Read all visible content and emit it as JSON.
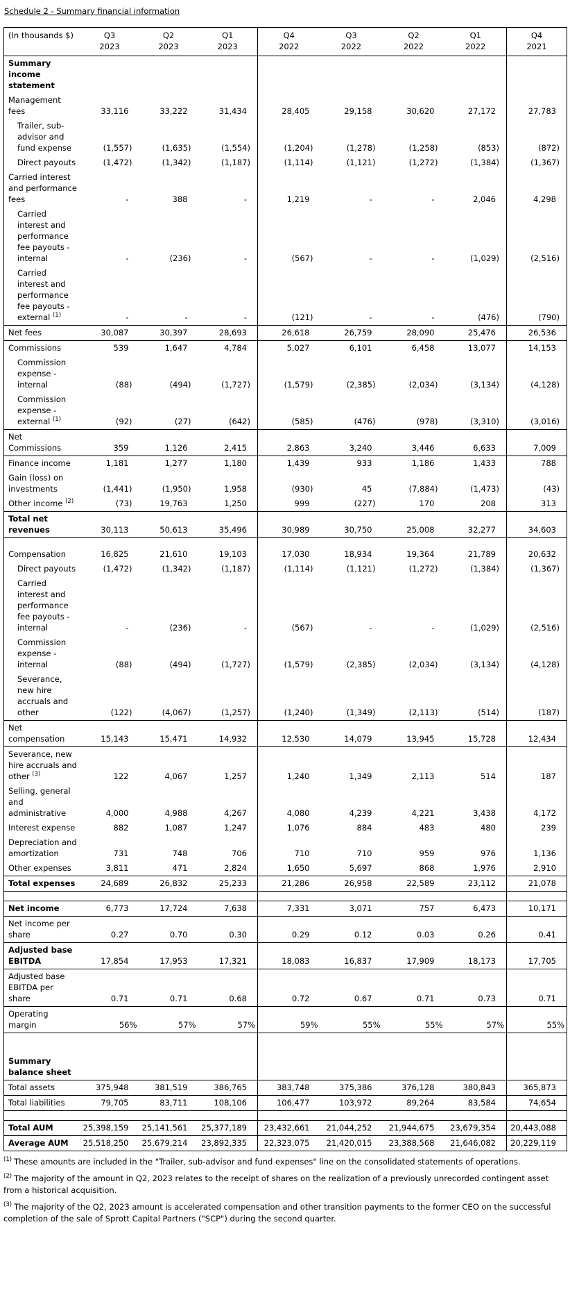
{
  "title": "Schedule 2 - Summary financial information",
  "colors": {
    "text": "#000000",
    "border": "#000000",
    "background": "#ffffff"
  },
  "table": {
    "corner_label": "(In thousands $)",
    "columns": [
      {
        "quarter": "Q3",
        "year": "2023"
      },
      {
        "quarter": "Q2",
        "year": "2023"
      },
      {
        "quarter": "Q1",
        "year": "2023"
      },
      {
        "quarter": "Q4",
        "year": "2022"
      },
      {
        "quarter": "Q3",
        "year": "2022"
      },
      {
        "quarter": "Q2",
        "year": "2022"
      },
      {
        "quarter": "Q1",
        "year": "2022"
      },
      {
        "quarter": "Q4",
        "year": "2021"
      }
    ],
    "rows": [
      {
        "type": "section",
        "label": "Summary income statement",
        "bold": true
      },
      {
        "label": "Management fees",
        "values": [
          "33,116",
          "33,222",
          "31,434",
          "28,405",
          "29,158",
          "30,620",
          "27,172",
          "27,783"
        ]
      },
      {
        "label": "Trailer, sub-advisor and fund expense",
        "indent": true,
        "values": [
          "(1,557)",
          "(1,635)",
          "(1,554)",
          "(1,204)",
          "(1,278)",
          "(1,258)",
          "(853)",
          "(872)"
        ]
      },
      {
        "label": "Direct payouts",
        "indent": true,
        "values": [
          "(1,472)",
          "(1,342)",
          "(1,187)",
          "(1,114)",
          "(1,121)",
          "(1,272)",
          "(1,384)",
          "(1,367)"
        ]
      },
      {
        "label": "Carried interest and performance fees",
        "values": [
          "-",
          "388",
          "-",
          "1,219",
          "-",
          "-",
          "2,046",
          "4,298"
        ]
      },
      {
        "label": "Carried interest and performance fee payouts - internal",
        "indent": true,
        "values": [
          "-",
          "(236)",
          "-",
          "(567)",
          "-",
          "-",
          "(1,029)",
          "(2,516)"
        ]
      },
      {
        "label": "Carried interest and performance fee payouts - external",
        "sup": "(1)",
        "indent": true,
        "values": [
          "-",
          "-",
          "-",
          "(121)",
          "-",
          "-",
          "(476)",
          "(790)"
        ]
      },
      {
        "label": "Net fees",
        "border_top": true,
        "border_bottom": true,
        "values": [
          "30,087",
          "30,397",
          "28,693",
          "26,618",
          "26,759",
          "28,090",
          "25,476",
          "26,536"
        ]
      },
      {
        "label": "Commissions",
        "values": [
          "539",
          "1,647",
          "4,784",
          "5,027",
          "6,101",
          "6,458",
          "13,077",
          "14,153"
        ]
      },
      {
        "label": "Commission expense - internal",
        "indent": true,
        "values": [
          "(88)",
          "(494)",
          "(1,727)",
          "(1,579)",
          "(2,385)",
          "(2,034)",
          "(3,134)",
          "(4,128)"
        ]
      },
      {
        "label": "Commission expense - external",
        "sup": "(1)",
        "indent": true,
        "values": [
          "(92)",
          "(27)",
          "(642)",
          "(585)",
          "(476)",
          "(978)",
          "(3,310)",
          "(3,016)"
        ]
      },
      {
        "label": "Net Commissions",
        "border_top": true,
        "border_bottom": true,
        "values": [
          "359",
          "1,126",
          "2,415",
          "2,863",
          "3,240",
          "3,446",
          "6,633",
          "7,009"
        ]
      },
      {
        "label": "Finance income",
        "values": [
          "1,181",
          "1,277",
          "1,180",
          "1,439",
          "933",
          "1,186",
          "1,433",
          "788"
        ]
      },
      {
        "label": "Gain (loss) on investments",
        "values": [
          "(1,441)",
          "(1,950)",
          "1,958",
          "(930)",
          "45",
          "(7,884)",
          "(1,473)",
          "(43)"
        ]
      },
      {
        "label": "Other income",
        "sup": "(2)",
        "values": [
          "(73)",
          "19,763",
          "1,250",
          "999",
          "(227)",
          "170",
          "208",
          "313"
        ]
      },
      {
        "label": "Total net revenues",
        "bold": true,
        "border_top": true,
        "border_bottom": true,
        "values": [
          "30,113",
          "50,613",
          "35,496",
          "30,989",
          "30,750",
          "25,008",
          "32,277",
          "34,603"
        ]
      },
      {
        "type": "spacer"
      },
      {
        "label": "Compensation",
        "values": [
          "16,825",
          "21,610",
          "19,103",
          "17,030",
          "18,934",
          "19,364",
          "21,789",
          "20,632"
        ]
      },
      {
        "label": "Direct payouts",
        "indent": true,
        "values": [
          "(1,472)",
          "(1,342)",
          "(1,187)",
          "(1,114)",
          "(1,121)",
          "(1,272)",
          "(1,384)",
          "(1,367)"
        ]
      },
      {
        "label": "Carried interest and performance fee payouts - internal",
        "indent": true,
        "values": [
          "-",
          "(236)",
          "-",
          "(567)",
          "-",
          "-",
          "(1,029)",
          "(2,516)"
        ]
      },
      {
        "label": "Commission expense - internal",
        "indent": true,
        "values": [
          "(88)",
          "(494)",
          "(1,727)",
          "(1,579)",
          "(2,385)",
          "(2,034)",
          "(3,134)",
          "(4,128)"
        ]
      },
      {
        "label": "Severance, new hire accruals and other",
        "indent": true,
        "values": [
          "(122)",
          "(4,067)",
          "(1,257)",
          "(1,240)",
          "(1,349)",
          "(2,113)",
          "(514)",
          "(187)"
        ]
      },
      {
        "label": "Net compensation",
        "border_top": true,
        "border_bottom": true,
        "values": [
          "15,143",
          "15,471",
          "14,932",
          "12,530",
          "14,079",
          "13,945",
          "15,728",
          "12,434"
        ]
      },
      {
        "label": "Severance, new hire accruals and other",
        "sup": "(3)",
        "values": [
          "122",
          "4,067",
          "1,257",
          "1,240",
          "1,349",
          "2,113",
          "514",
          "187"
        ]
      },
      {
        "label": "Selling, general and administrative",
        "values": [
          "4,000",
          "4,988",
          "4,267",
          "4,080",
          "4,239",
          "4,221",
          "3,438",
          "4,172"
        ]
      },
      {
        "label": "Interest expense",
        "values": [
          "882",
          "1,087",
          "1,247",
          "1,076",
          "884",
          "483",
          "480",
          "239"
        ]
      },
      {
        "label": "Depreciation and amortization",
        "values": [
          "731",
          "748",
          "706",
          "710",
          "710",
          "959",
          "976",
          "1,136"
        ]
      },
      {
        "label": "Other expenses",
        "values": [
          "3,811",
          "471",
          "2,824",
          "1,650",
          "5,697",
          "868",
          "1,976",
          "2,910"
        ]
      },
      {
        "label": "Total expenses",
        "bold": true,
        "border_top": true,
        "border_bottom": true,
        "values": [
          "24,689",
          "26,832",
          "25,233",
          "21,286",
          "26,958",
          "22,589",
          "23,112",
          "21,078"
        ]
      },
      {
        "type": "spacer"
      },
      {
        "label": "Net income",
        "bold": true,
        "border_top": true,
        "border_bottom": true,
        "values": [
          "6,773",
          "17,724",
          "7,638",
          "7,331",
          "3,071",
          "757",
          "6,473",
          "10,171"
        ]
      },
      {
        "label": "Net income per share",
        "border_bottom": true,
        "values": [
          "0.27",
          "0.70",
          "0.30",
          "0.29",
          "0.12",
          "0.03",
          "0.26",
          "0.41"
        ]
      },
      {
        "label": "Adjusted base EBITDA",
        "bold": true,
        "border_bottom": true,
        "values": [
          "17,854",
          "17,953",
          "17,321",
          "18,083",
          "16,837",
          "17,909",
          "18,173",
          "17,705"
        ]
      },
      {
        "label": "Adjusted base EBITDA per share",
        "border_bottom": true,
        "values": [
          "0.71",
          "0.71",
          "0.68",
          "0.72",
          "0.67",
          "0.71",
          "0.73",
          "0.71"
        ]
      },
      {
        "label": "Operating margin",
        "border_bottom": true,
        "flush": true,
        "values": [
          "56%",
          "57%",
          "57%",
          "59%",
          "55%",
          "55%",
          "57%",
          "55%"
        ]
      },
      {
        "type": "spacer",
        "tall": true
      },
      {
        "type": "section",
        "label": "Summary balance sheet",
        "bold": true,
        "border_bottom": true
      },
      {
        "label": "Total assets",
        "border_bottom": true,
        "values": [
          "375,948",
          "381,519",
          "386,765",
          "383,748",
          "375,386",
          "376,128",
          "380,843",
          "365,873"
        ]
      },
      {
        "label": "Total liabilities",
        "border_bottom": true,
        "values": [
          "79,705",
          "83,711",
          "108,106",
          "106,477",
          "103,972",
          "89,264",
          "83,584",
          "74,654"
        ]
      },
      {
        "type": "spacer",
        "border_bottom": true
      },
      {
        "label": "Total AUM",
        "bold": true,
        "border_bottom": true,
        "values": [
          "25,398,159",
          "25,141,561",
          "25,377,189",
          "23,432,661",
          "21,044,252",
          "21,944,675",
          "23,679,354",
          "20,443,088"
        ]
      },
      {
        "label": "Average AUM",
        "bold": true,
        "values": [
          "25,518,250",
          "25,679,214",
          "23,892,335",
          "22,323,075",
          "21,420,015",
          "23,388,568",
          "21,646,082",
          "20,229,119"
        ]
      }
    ]
  },
  "footnotes": [
    {
      "marker": "(1)",
      "text": "These amounts are included in the \"Trailer, sub-advisor and fund expenses\" line on the consolidated statements of operations."
    },
    {
      "marker": "(2)",
      "text": "The majority of the amount in Q2, 2023 relates to the receipt of shares on the realization of a previously unrecorded contingent asset from a historical acquisition."
    },
    {
      "marker": "(3)",
      "text": "The majority of the Q2, 2023 amount is accelerated compensation and other transition payments to the former CEO on the successful completion of the sale of Sprott Capital Partners (\"SCP\") during the second quarter."
    }
  ]
}
